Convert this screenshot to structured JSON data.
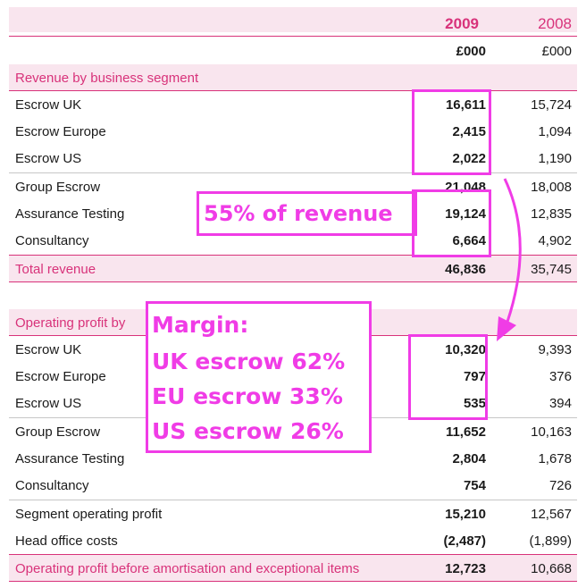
{
  "columns": {
    "year_2009": "2009",
    "year_2008": "2008",
    "unit_2009": "£000",
    "unit_2008": "£000"
  },
  "revenue": {
    "section_label": "Revenue by business segment",
    "rows": [
      {
        "label": "Escrow UK",
        "v2009": "16,611",
        "v2008": "15,724"
      },
      {
        "label": "Escrow Europe",
        "v2009": "2,415",
        "v2008": "1,094"
      },
      {
        "label": "Escrow US",
        "v2009": "2,022",
        "v2008": "1,190"
      },
      {
        "label": "Group Escrow",
        "v2009": "21,048",
        "v2008": "18,008"
      },
      {
        "label": "Assurance Testing",
        "v2009": "19,124",
        "v2008": "12,835"
      },
      {
        "label": "Consultancy",
        "v2009": "6,664",
        "v2008": "4,902"
      }
    ],
    "total": {
      "label": "Total revenue",
      "v2009": "46,836",
      "v2008": "35,745"
    }
  },
  "profit": {
    "section_label": "Operating profit by",
    "rows": [
      {
        "label": "Escrow UK",
        "v2009": "10,320",
        "v2008": "9,393"
      },
      {
        "label": "Escrow Europe",
        "v2009": "797",
        "v2008": "376"
      },
      {
        "label": "Escrow US",
        "v2009": "535",
        "v2008": "394"
      },
      {
        "label": "Group Escrow",
        "v2009": "11,652",
        "v2008": "10,163"
      },
      {
        "label": "Assurance Testing",
        "v2009": "2,804",
        "v2008": "1,678"
      },
      {
        "label": "Consultancy",
        "v2009": "754",
        "v2008": "726"
      },
      {
        "label": "Segment operating profit",
        "v2009": "15,210",
        "v2008": "12,567"
      },
      {
        "label": "Head office costs",
        "v2009": "(2,487)",
        "v2008": "(1,899)"
      }
    ],
    "total": {
      "label": "Operating profit before amortisation and exceptional items",
      "v2009": "12,723",
      "v2008": "10,668"
    }
  },
  "annotations": {
    "revenue_share": "55% of revenue",
    "margin_title": "Margin:",
    "margin_uk": "UK escrow 62%",
    "margin_eu": "EU escrow 33%",
    "margin_us": "US escrow 26%",
    "color": "#f03ce6"
  },
  "colors": {
    "accent": "#d8327a",
    "band": "#f9e5ee"
  }
}
